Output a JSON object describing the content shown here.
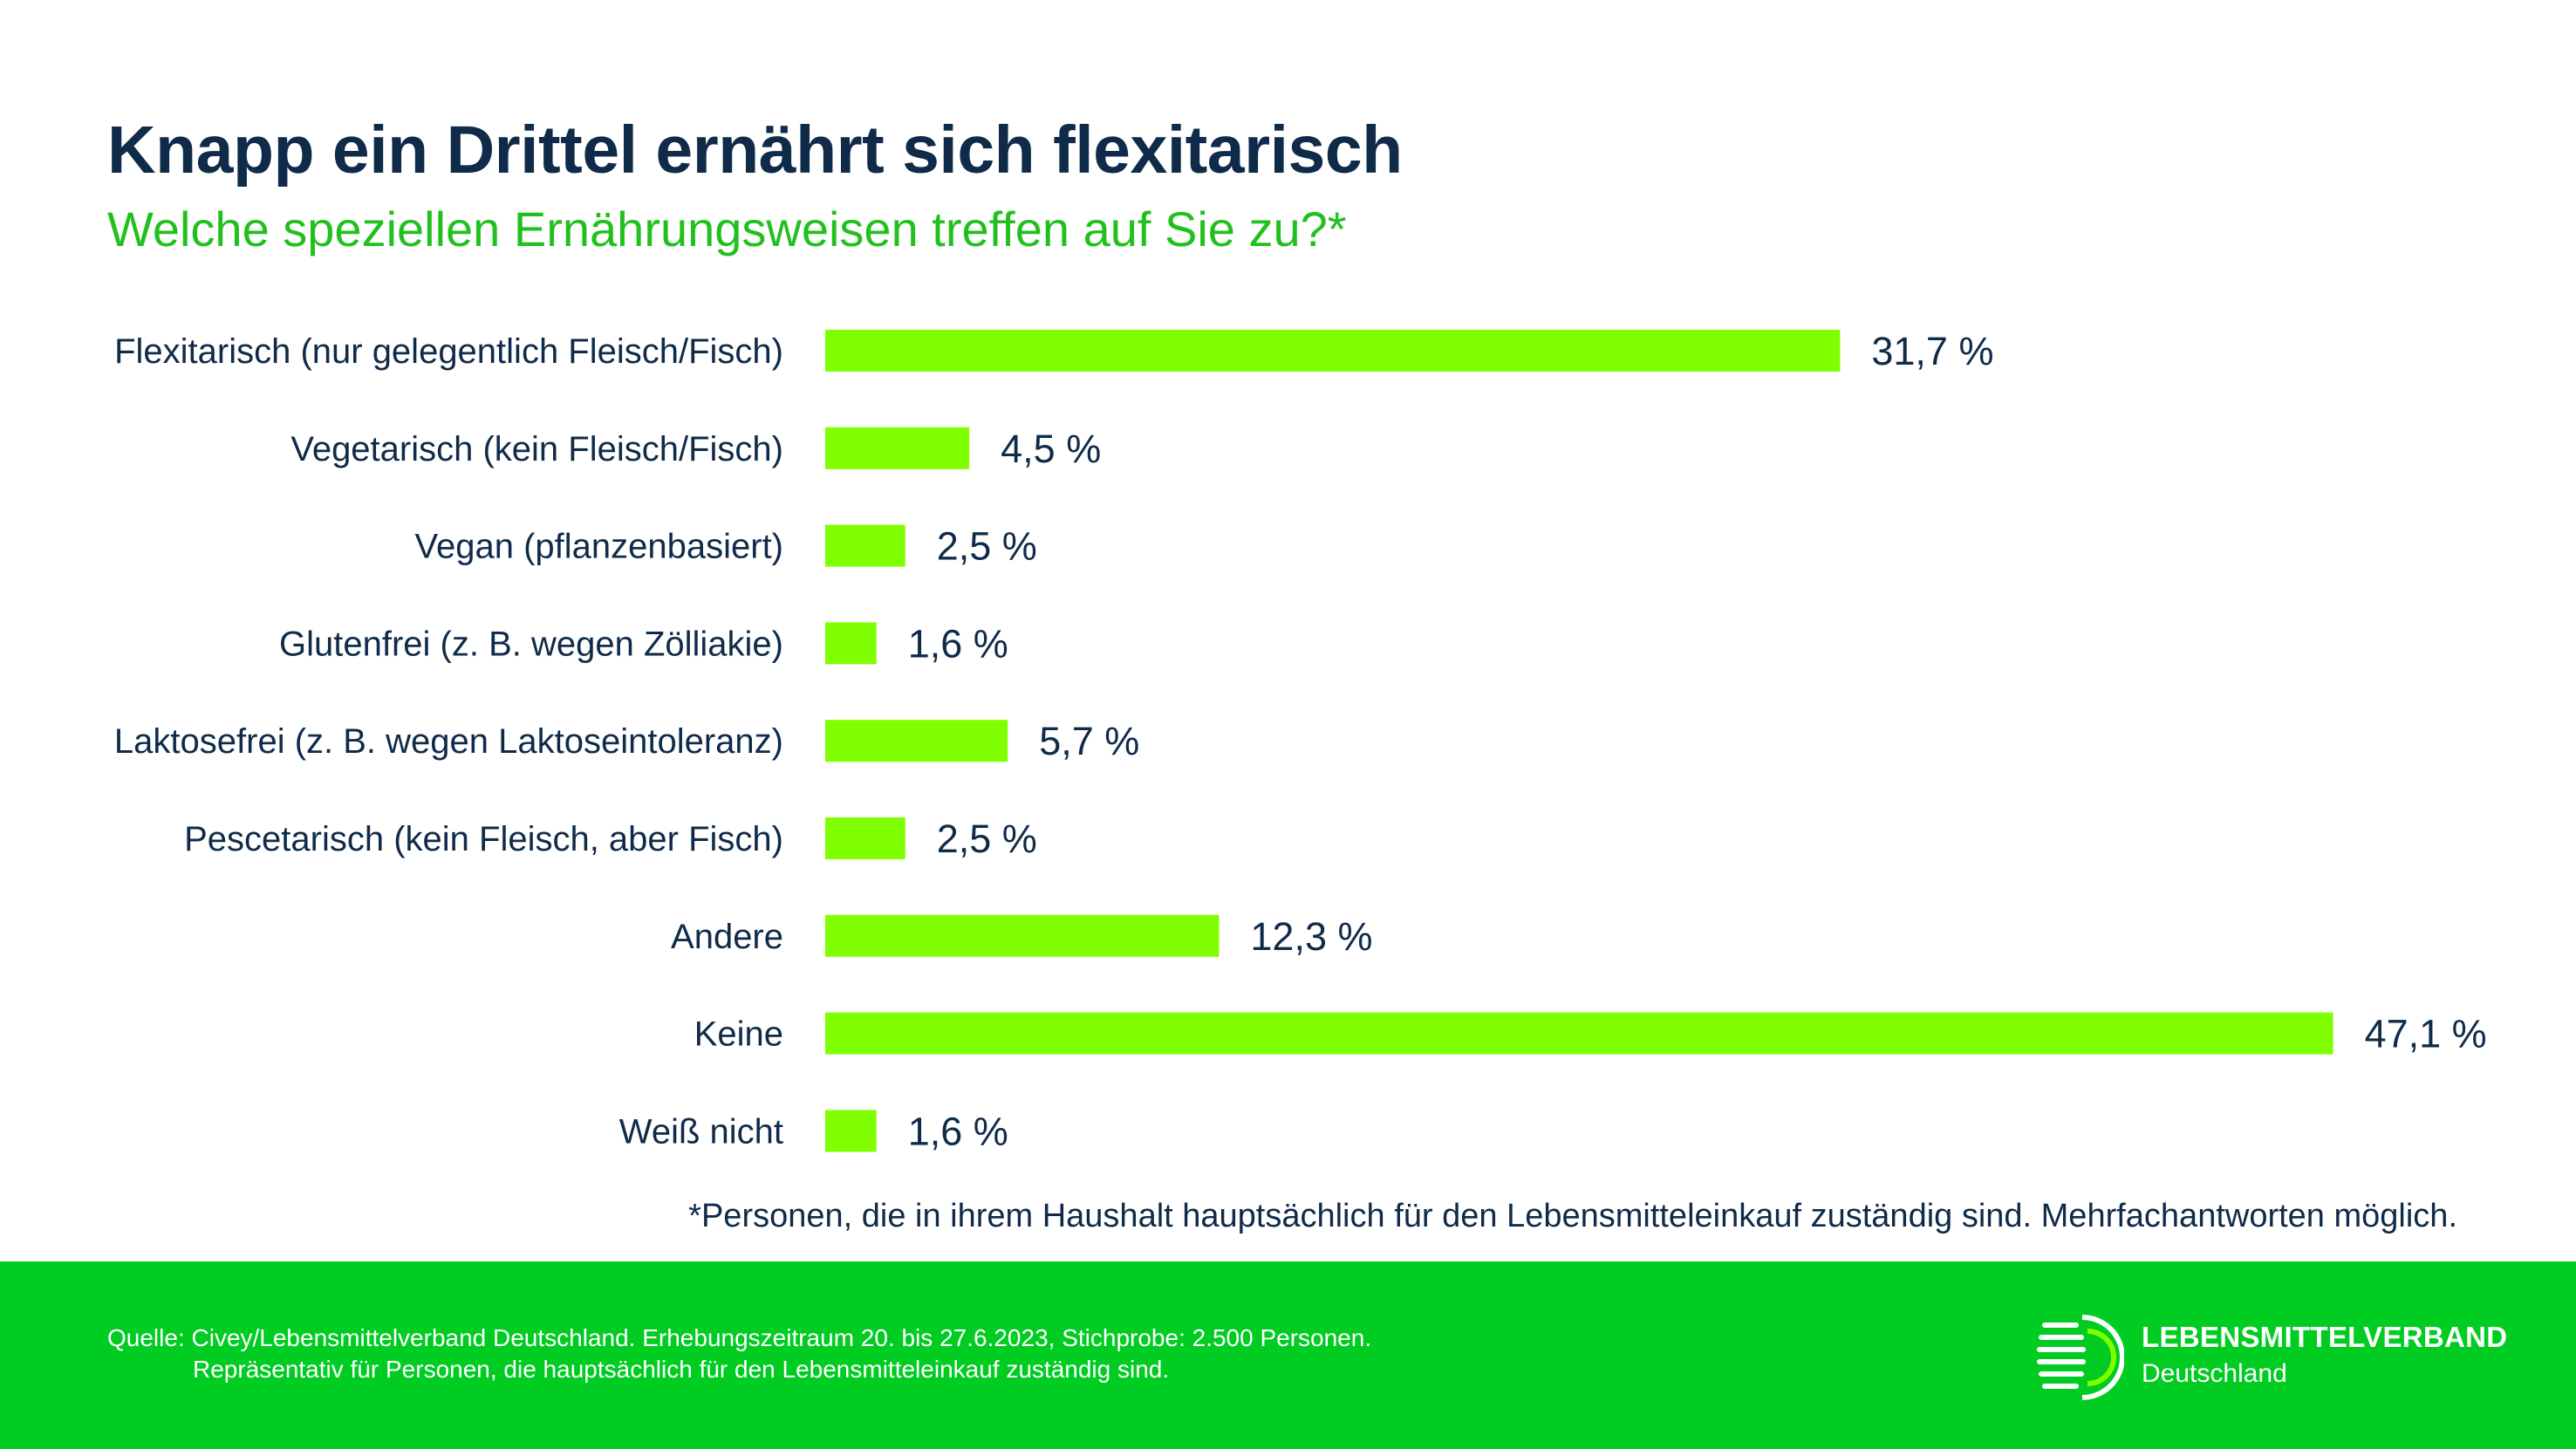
{
  "title": "Knapp ein Drittel ernährt sich flexitarisch",
  "subtitle": "Welche speziellen Ernährungsweisen treffen auf Sie zu?*",
  "footnote": "*Personen, die in ihrem Haushalt hauptsächlich für den Lebensmitteleinkauf zuständig sind. Mehrfachantworten möglich.",
  "source": {
    "line1": "Quelle: Civey/Lebensmittelverband Deutschland. Erhebungszeitraum 20. bis 27.6.2023, Stichprobe: 2.500 Personen.",
    "line2": "Repräsentativ für Personen, die hauptsächlich für den Lebensmitteleinkauf zuständig sind."
  },
  "logo": {
    "name": "LEBENSMITTELVERBAND",
    "subtitle": "Deutschland",
    "icon": "lebensmittelverband-logo-icon"
  },
  "colors": {
    "bar": "#80ff00",
    "text": "#0f2b49",
    "subtitle": "#22c01e",
    "footer": "#00cc22"
  },
  "chart_data": {
    "type": "bar",
    "orientation": "horizontal",
    "categories": [
      "Flexitarisch (nur gelegentlich Fleisch/Fisch)",
      "Vegetarisch (kein Fleisch/Fisch)",
      "Vegan (pflanzenbasiert)",
      "Glutenfrei (z. B. wegen Zölliakie)",
      "Laktosefrei (z. B. wegen Laktoseintoleranz)",
      "Pescetarisch (kein Fleisch, aber Fisch)",
      "Andere",
      "Keine",
      "Weiß nicht"
    ],
    "values": [
      31.7,
      4.5,
      2.5,
      1.6,
      5.7,
      2.5,
      12.3,
      47.1,
      1.6
    ],
    "value_labels": [
      "31,7 %",
      "4,5 %",
      "2,5 %",
      "1,6 %",
      "5,7 %",
      "2,5 %",
      "12,3 %",
      "47,1 %",
      "1,6 %"
    ],
    "unit": "%",
    "grid": false,
    "legend": "none"
  }
}
